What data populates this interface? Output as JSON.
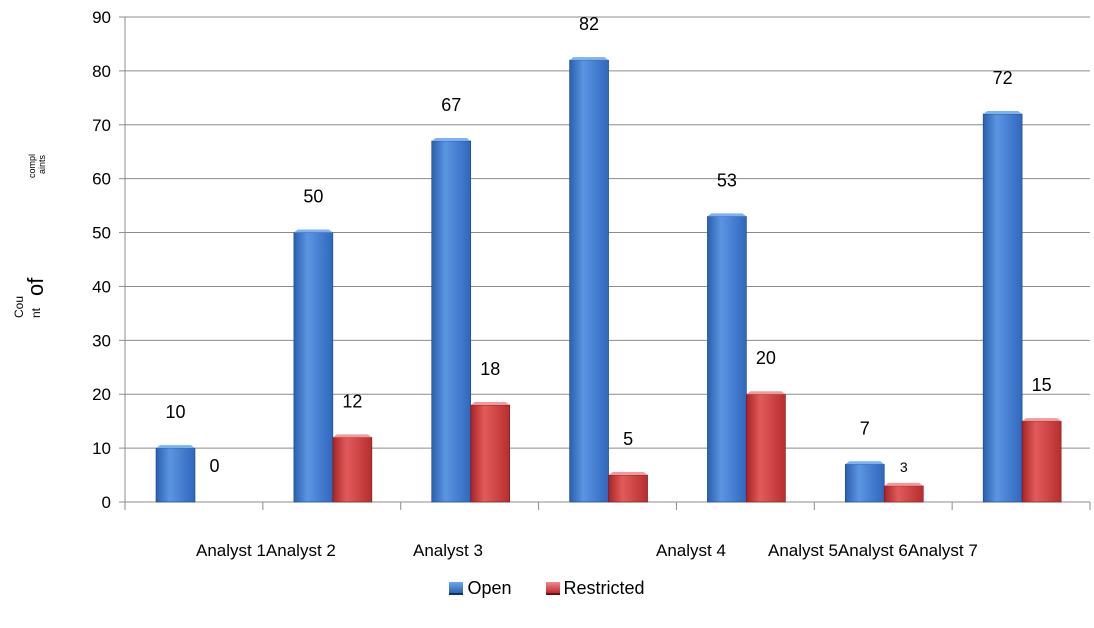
{
  "chart_data": {
    "type": "bar",
    "categories": [
      "Analyst 1",
      "Analyst 2",
      "Analyst 3",
      "Analyst 4",
      "Analyst 5",
      "Analyst 6",
      "Analyst 7"
    ],
    "category_labels": [
      "Analyst 1Analyst 2",
      "Analyst 3",
      "Analyst 4",
      "Analyst 5Analyst 6Analyst 7"
    ],
    "series": [
      {
        "name": "Open",
        "color": "#3d7bd6",
        "values": [
          10,
          50,
          67,
          82,
          53,
          7,
          72
        ]
      },
      {
        "name": "Restricted",
        "color": "#d63b3b",
        "values": [
          0,
          12,
          18,
          5,
          20,
          3,
          15
        ]
      }
    ],
    "ylim": [
      0,
      90
    ],
    "yticks": [
      0,
      10,
      20,
      30,
      40,
      50,
      60,
      70,
      80,
      90
    ],
    "ylabel_parts": [
      "compl",
      "aints",
      "of",
      "Cou",
      "nt"
    ],
    "title": "",
    "xlabel": "",
    "grid": true,
    "legend": "bottom"
  }
}
